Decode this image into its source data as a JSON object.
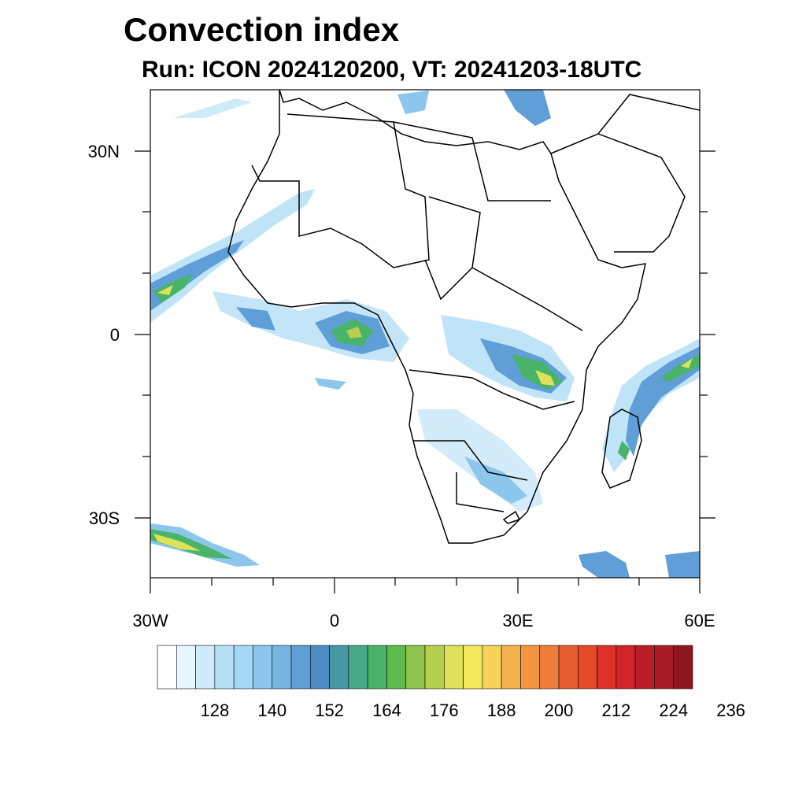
{
  "title": "Convection index",
  "subtitle": "Run: ICON 2024120200,  VT: 20241203-18UTC",
  "axes": {
    "lat_labels": [
      "30N",
      "0",
      "30S"
    ],
    "lon_labels": [
      "30W",
      "0",
      "30E",
      "60E"
    ]
  },
  "colorbar": {
    "labels": [
      "128",
      "140",
      "152",
      "164",
      "176",
      "188",
      "200",
      "212",
      "224",
      "236"
    ],
    "colors": [
      "#ffffff",
      "#e8f6fd",
      "#cfeaf8",
      "#b8e0f6",
      "#a2d8f4",
      "#8cc6ec",
      "#78b4e2",
      "#5f9ed6",
      "#4f8bc4",
      "#4899a6",
      "#48a98a",
      "#49b36a",
      "#5dbb4e",
      "#8fc24a",
      "#b6d04e",
      "#dde25a",
      "#f3e85c",
      "#f8d258",
      "#f6b24e",
      "#f39642",
      "#ef7c38",
      "#e95e2e",
      "#e44a2a",
      "#dc3128",
      "#cf2428",
      "#bc1e27",
      "#a81a24",
      "#8e161e"
    ]
  },
  "chart_data": {
    "type": "heatmap",
    "title": "Convection index",
    "subtitle": "Run: ICON 2024120200,  VT: 20241203-18UTC",
    "xlim": [
      -30,
      60
    ],
    "ylim": [
      -40,
      40
    ],
    "x_ticks": [
      "30W",
      "0",
      "30E",
      "60E"
    ],
    "y_ticks": [
      "30N",
      "0",
      "30S"
    ],
    "colorbar_levels": [
      128,
      140,
      152,
      164,
      176,
      188,
      200,
      212,
      224,
      236
    ]
  }
}
